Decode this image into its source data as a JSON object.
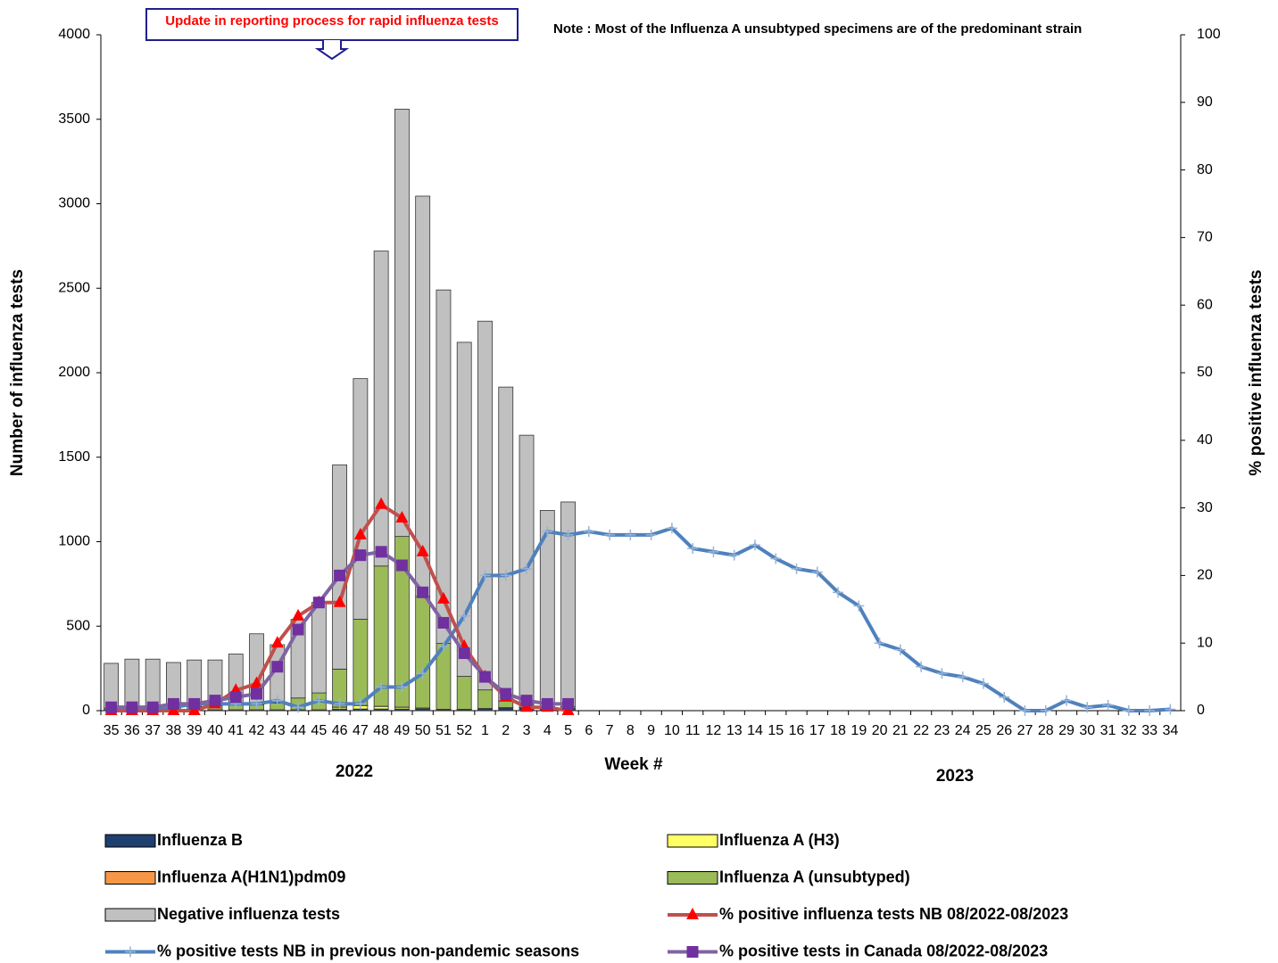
{
  "chart_data": {
    "type": "bar",
    "annotation": "Update in reporting process for rapid influenza tests",
    "note": "Note :  Most of the  Influenza A unsubtyped specimens are of the predominant strain",
    "y_label": "Number of influenza tests",
    "y2_label": "% positive influenza tests",
    "x_label": "Week #",
    "year_labels": [
      "2022",
      "2023"
    ],
    "categories": [
      35,
      36,
      37,
      38,
      39,
      40,
      41,
      42,
      43,
      44,
      45,
      46,
      47,
      48,
      49,
      50,
      51,
      52,
      1,
      2,
      3,
      4,
      5,
      6,
      7,
      8,
      9,
      10,
      11,
      12,
      13,
      14,
      15,
      16,
      17,
      18,
      19,
      20,
      21,
      22,
      23,
      24,
      25,
      26,
      27,
      28,
      29,
      30,
      31,
      32,
      33,
      34
    ],
    "ylim": [
      0,
      4000
    ],
    "yticks": [
      0,
      500,
      1000,
      1500,
      2000,
      2500,
      3000,
      3500,
      4000
    ],
    "y2lim": [
      0,
      100
    ],
    "y2ticks": [
      0,
      10,
      20,
      30,
      40,
      50,
      60,
      70,
      80,
      90,
      100
    ],
    "series": [
      {
        "name": "Influenza B",
        "type": "bar",
        "color": "#1f3f6e",
        "values": [
          2,
          2,
          2,
          2,
          2,
          2,
          2,
          2,
          2,
          2,
          2,
          10,
          10,
          10,
          10,
          10,
          5,
          5,
          10,
          15,
          15,
          10,
          10,
          null,
          null,
          null,
          null,
          null,
          null,
          null,
          null,
          null,
          null,
          null,
          null,
          null,
          null,
          null,
          null,
          null,
          null,
          null,
          null,
          null,
          null,
          null,
          null,
          null,
          null,
          null,
          null,
          null
        ]
      },
      {
        "name": "Influenza A (H3)",
        "type": "bar",
        "color": "#ffff66",
        "values": [
          2,
          2,
          2,
          2,
          2,
          2,
          2,
          2,
          2,
          2,
          2,
          10,
          20,
          15,
          10,
          5,
          2,
          2,
          2,
          2,
          2,
          2,
          2,
          null,
          null,
          null,
          null,
          null,
          null,
          null,
          null,
          null,
          null,
          null,
          null,
          null,
          null,
          null,
          null,
          null,
          null,
          null,
          null,
          null,
          null,
          null,
          null,
          null,
          null,
          null,
          null,
          null
        ]
      },
      {
        "name": "Influenza A(H1N1)pdm09",
        "type": "bar",
        "color": "#f79646",
        "values": [
          1,
          1,
          1,
          1,
          1,
          1,
          1,
          1,
          1,
          1,
          1,
          1,
          1,
          1,
          1,
          1,
          1,
          1,
          1,
          1,
          1,
          1,
          1,
          null,
          null,
          null,
          null,
          null,
          null,
          null,
          null,
          null,
          null,
          null,
          null,
          null,
          null,
          null,
          null,
          null,
          null,
          null,
          null,
          null,
          null,
          null,
          null,
          null,
          null,
          null,
          null,
          null
        ]
      },
      {
        "name": "Influenza A (unsubtyped)",
        "type": "bar",
        "color": "#9bbb59",
        "values": [
          10,
          10,
          15,
          20,
          20,
          25,
          30,
          30,
          40,
          70,
          100,
          225,
          510,
          830,
          1010,
          660,
          390,
          195,
          110,
          40,
          20,
          10,
          10,
          null,
          null,
          null,
          null,
          null,
          null,
          null,
          null,
          null,
          null,
          null,
          null,
          null,
          null,
          null,
          null,
          null,
          null,
          null,
          null,
          null,
          null,
          null,
          null,
          null,
          null,
          null,
          null,
          null
        ]
      },
      {
        "name": "Negative influenza tests",
        "type": "bar",
        "color": "#c0c0c0",
        "values": [
          265,
          290,
          285,
          260,
          275,
          270,
          300,
          420,
          345,
          465,
          535,
          1209,
          1424,
          1864,
          2529,
          2369,
          2092,
          1977,
          2182,
          1857,
          1592,
          1162,
          1212,
          null,
          null,
          null,
          null,
          null,
          null,
          null,
          null,
          null,
          null,
          null,
          null,
          null,
          null,
          null,
          null,
          null,
          null,
          null,
          null,
          null,
          null,
          null,
          null,
          null,
          null,
          null,
          null,
          null
        ]
      },
      {
        "name": "% positive influenza tests NB 08/2022-08/2023",
        "type": "line",
        "axis": "y2",
        "color": "#c0504d",
        "marker": "triangle",
        "marker_color": "#ff0000",
        "values": [
          0,
          0,
          0,
          0,
          0,
          1,
          3,
          4,
          10,
          14,
          16,
          16,
          26,
          30.5,
          28.5,
          23.5,
          16.5,
          9.5,
          5,
          2,
          0.5,
          0.5,
          0,
          null,
          null,
          null,
          null,
          null,
          null,
          null,
          null,
          null,
          null,
          null,
          null,
          null,
          null,
          null,
          null,
          null,
          null,
          null,
          null,
          null,
          null,
          null,
          null,
          null,
          null,
          null,
          null,
          null
        ]
      },
      {
        "name": "% positive tests NB in previous non-pandemic seasons",
        "type": "line",
        "axis": "y2",
        "color": "#4f81bd",
        "marker": "plus",
        "marker_color": "#95b3d7",
        "values": [
          0.5,
          0.5,
          0.5,
          0.5,
          1,
          1,
          1,
          1,
          1.5,
          0.5,
          1.5,
          1,
          1,
          3.5,
          3.5,
          5.5,
          9.5,
          14,
          20,
          20,
          21,
          26.5,
          26,
          26.5,
          26,
          26,
          26,
          27,
          24,
          23.5,
          23,
          24.5,
          22.5,
          21,
          20.5,
          17.5,
          15.5,
          10,
          9,
          6.5,
          5.5,
          5,
          4,
          2,
          0,
          0,
          1.5,
          0.5,
          0.8,
          0,
          0,
          0.2
        ]
      },
      {
        "name": "% positive tests  in Canada 08/2022-08/2023",
        "type": "line",
        "axis": "y2",
        "color": "#8064a2",
        "marker": "square",
        "marker_color": "#7030a0",
        "values": [
          0.5,
          0.5,
          0.5,
          1,
          1,
          1.5,
          2,
          2.5,
          6.5,
          12,
          16,
          20,
          23,
          23.5,
          21.5,
          17.5,
          13,
          8.5,
          5,
          2.5,
          1.5,
          1,
          1,
          null,
          null,
          null,
          null,
          null,
          null,
          null,
          null,
          null,
          null,
          null,
          null,
          null,
          null,
          null,
          null,
          null,
          null,
          null,
          null,
          null,
          null,
          null,
          null,
          null,
          null,
          null,
          null,
          null
        ]
      }
    ]
  }
}
